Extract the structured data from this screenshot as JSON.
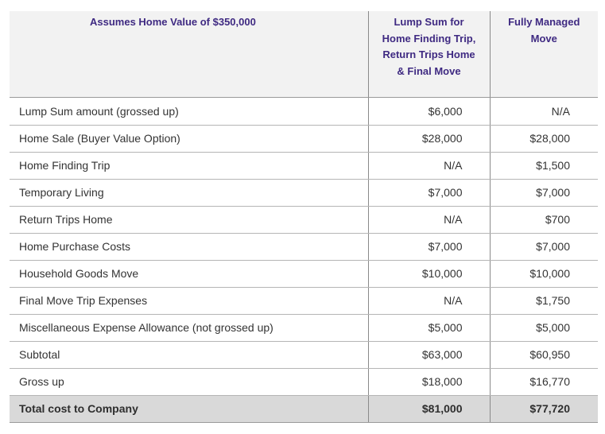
{
  "header": {
    "col1": "Assumes Home Value of $350,000",
    "col2_lines": [
      "Lump Sum for",
      "Home Finding Trip,",
      "Return Trips Home",
      "& Final Move"
    ],
    "col3_lines": [
      "Fully Managed",
      "Move"
    ]
  },
  "rows": [
    {
      "label": "Lump Sum amount (grossed up)",
      "lump_sum": "$6,000",
      "fully_managed": "N/A"
    },
    {
      "label": "Home Sale (Buyer Value Option)",
      "lump_sum": "$28,000",
      "fully_managed": "$28,000"
    },
    {
      "label": "Home Finding Trip",
      "lump_sum": "N/A",
      "fully_managed": "$1,500"
    },
    {
      "label": "Temporary Living",
      "lump_sum": "$7,000",
      "fully_managed": "$7,000"
    },
    {
      "label": "Return Trips Home",
      "lump_sum": "N/A",
      "fully_managed": "$700"
    },
    {
      "label": "Home Purchase Costs",
      "lump_sum": "$7,000",
      "fully_managed": "$7,000"
    },
    {
      "label": "Household Goods Move",
      "lump_sum": "$10,000",
      "fully_managed": "$10,000"
    },
    {
      "label": "Final Move Trip Expenses",
      "lump_sum": "N/A",
      "fully_managed": "$1,750"
    },
    {
      "label": "Miscellaneous Expense Allowance (not grossed up)",
      "lump_sum": "$5,000",
      "fully_managed": "$5,000"
    },
    {
      "label": "Subtotal",
      "lump_sum": "$63,000",
      "fully_managed": "$60,950"
    },
    {
      "label": "Gross up",
      "lump_sum": "$18,000",
      "fully_managed": "$16,770"
    },
    {
      "label": "Total cost to Company",
      "lump_sum": "$81,000",
      "fully_managed": "$77,720"
    }
  ],
  "colors": {
    "header_text": "#3f2a82",
    "header_background": "#f2f2f2",
    "total_row_background": "#d9d9d9"
  }
}
